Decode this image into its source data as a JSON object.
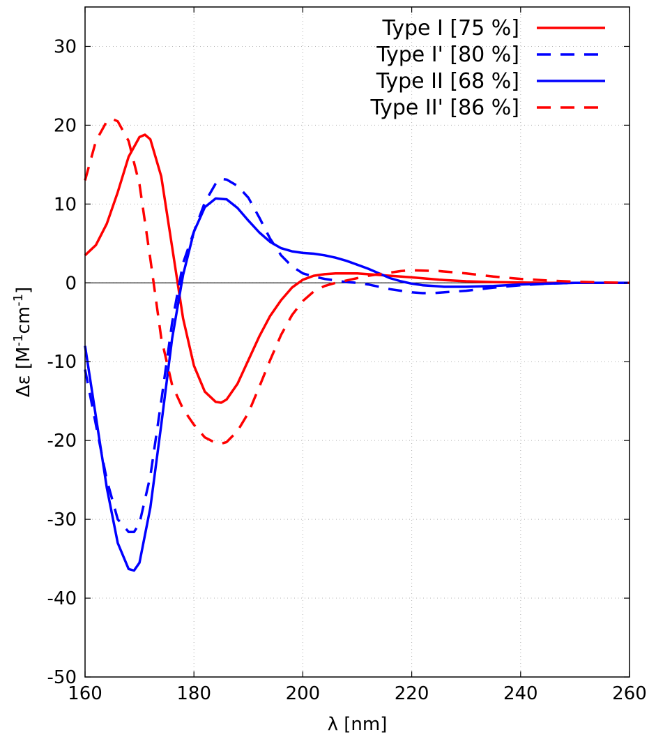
{
  "chart_data": {
    "type": "line",
    "title": "",
    "xlabel": "λ [nm]",
    "ylabel_parts": [
      "Δε [M",
      "-1",
      "cm",
      "-1",
      "]"
    ],
    "xlim": [
      160,
      260
    ],
    "ylim": [
      -50,
      35
    ],
    "x_ticks": [
      160,
      180,
      200,
      220,
      240,
      260
    ],
    "y_ticks": [
      -50,
      -40,
      -30,
      -20,
      -10,
      0,
      10,
      20,
      30
    ],
    "grid": true,
    "zero_line": true,
    "legend_position": "top-right",
    "series": [
      {
        "name": "Type I [75 %]",
        "color": "#ff0000",
        "style": "solid",
        "x": [
          160,
          162,
          164,
          166,
          168,
          170,
          171,
          172,
          174,
          176,
          178,
          180,
          182,
          184,
          185,
          186,
          188,
          190,
          192,
          194,
          196,
          198,
          200,
          202,
          204,
          206,
          208,
          210,
          212,
          214,
          216,
          218,
          220,
          225,
          230,
          235,
          240,
          245,
          250,
          255,
          260
        ],
        "y": [
          3.5,
          4.8,
          7.5,
          11.5,
          16,
          18.5,
          18.8,
          18.2,
          13.5,
          4.5,
          -4.5,
          -10.5,
          -13.8,
          -15.1,
          -15.2,
          -14.8,
          -12.8,
          -9.8,
          -6.8,
          -4.2,
          -2.2,
          -0.6,
          0.4,
          0.9,
          1.1,
          1.2,
          1.2,
          1.2,
          1.1,
          1,
          0.9,
          0.8,
          0.7,
          0.4,
          0.2,
          0.1,
          0.05,
          0,
          0,
          0,
          0
        ]
      },
      {
        "name": "Type I' [80 %]",
        "color": "#0000ff",
        "style": "dashed",
        "x": [
          160,
          162,
          164,
          166,
          168,
          169,
          170,
          172,
          174,
          176,
          178,
          180,
          182,
          184,
          185,
          186,
          188,
          190,
          192,
          194,
          196,
          198,
          200,
          202,
          204,
          206,
          208,
          210,
          212,
          214,
          216,
          218,
          220,
          222,
          224,
          226,
          228,
          230,
          235,
          240,
          245,
          250,
          255,
          260
        ],
        "y": [
          -11,
          -18,
          -25,
          -30,
          -31.6,
          -31.6,
          -30.5,
          -24.5,
          -15,
          -5,
          2.5,
          6.5,
          10.2,
          12.6,
          13.2,
          13.1,
          12.3,
          10.8,
          8.3,
          5.6,
          3.5,
          2.1,
          1.2,
          0.8,
          0.5,
          0.3,
          0.1,
          0,
          -0.2,
          -0.5,
          -0.8,
          -1,
          -1.2,
          -1.3,
          -1.3,
          -1.2,
          -1.1,
          -1,
          -0.6,
          -0.3,
          -0.1,
          0,
          0,
          0
        ]
      },
      {
        "name": "Type II [68 %]",
        "color": "#0000ff",
        "style": "solid",
        "x": [
          160,
          162,
          164,
          166,
          168,
          169,
          170,
          172,
          174,
          176,
          178,
          180,
          182,
          184,
          186,
          188,
          190,
          192,
          194,
          196,
          198,
          200,
          202,
          204,
          206,
          208,
          210,
          212,
          214,
          216,
          218,
          220,
          222,
          224,
          226,
          228,
          230,
          235,
          240,
          245,
          250,
          255,
          260
        ],
        "y": [
          -8,
          -17,
          -26,
          -33,
          -36.3,
          -36.5,
          -35.5,
          -28.5,
          -18,
          -7,
          1,
          6.5,
          9.6,
          10.7,
          10.6,
          9.5,
          7.9,
          6.4,
          5.2,
          4.4,
          4,
          3.8,
          3.7,
          3.5,
          3.2,
          2.8,
          2.3,
          1.8,
          1.2,
          0.6,
          0.2,
          -0.1,
          -0.3,
          -0.4,
          -0.5,
          -0.5,
          -0.5,
          -0.4,
          -0.2,
          -0.1,
          0,
          0,
          0
        ]
      },
      {
        "name": "Type II' [86 %]",
        "color": "#ff0000",
        "style": "dashed",
        "x": [
          160,
          162,
          164,
          165,
          166,
          168,
          170,
          172,
          174,
          176,
          178,
          180,
          182,
          184,
          185,
          186,
          188,
          190,
          192,
          194,
          196,
          198,
          200,
          202,
          204,
          206,
          208,
          210,
          212,
          214,
          216,
          218,
          220,
          225,
          230,
          235,
          240,
          245,
          250,
          255,
          260
        ],
        "y": [
          13,
          18,
          20.5,
          20.8,
          20.5,
          18,
          12.5,
          3,
          -7,
          -13,
          -16,
          -18,
          -19.6,
          -20.3,
          -20.4,
          -20.2,
          -18.8,
          -16.5,
          -13.2,
          -9.8,
          -6.6,
          -4.1,
          -2.3,
          -1.1,
          -0.4,
          0,
          0.3,
          0.6,
          0.9,
          1.1,
          1.3,
          1.5,
          1.6,
          1.5,
          1.2,
          0.8,
          0.5,
          0.3,
          0.15,
          0.05,
          0
        ]
      }
    ]
  }
}
